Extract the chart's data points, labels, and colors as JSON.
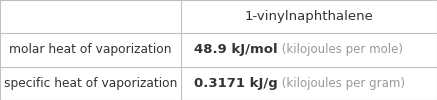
{
  "title": "1-vinylnaphthalene",
  "rows": [
    {
      "label": "molar heat of vaporization",
      "value_bold": "48.9 kJ/mol",
      "value_light": " (kilojoules per mole)"
    },
    {
      "label": "specific heat of vaporization",
      "value_bold": "0.3171 kJ/g",
      "value_light": " (kilojoules per gram)"
    }
  ],
  "col_split": 0.415,
  "background_color": "#ffffff",
  "border_color": "#c0c0c0",
  "text_color": "#333333",
  "light_text_color": "#999999",
  "title_fontsize": 9.5,
  "label_fontsize": 8.8,
  "value_bold_fontsize": 9.5,
  "value_light_fontsize": 8.5
}
